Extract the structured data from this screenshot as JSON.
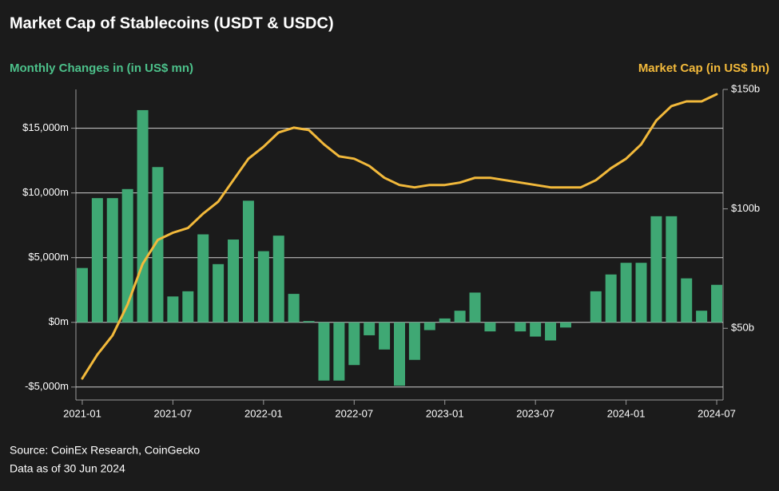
{
  "chart_data": {
    "type": "bar",
    "title": "Market Cap of Stablecoins (USDT & USDC)",
    "y_axis_label": "Monthly Changes in (in US$ mn)",
    "y2_axis_label": "Market Cap (in US$ bn)",
    "source": "Source: CoinEx Research, CoinGecko",
    "note": "Data as of 30 Jun 2024",
    "categories": [
      "2021-01",
      null,
      null,
      null,
      null,
      null,
      "2021-07",
      null,
      null,
      null,
      null,
      null,
      "2022-01",
      null,
      null,
      null,
      null,
      null,
      "2022-07",
      null,
      null,
      null,
      null,
      null,
      "2023-01",
      null,
      null,
      null,
      null,
      null,
      "2023-07",
      null,
      null,
      null,
      null,
      null,
      "2024-01",
      null,
      null,
      null,
      null,
      null,
      "2024-07"
    ],
    "series": [
      {
        "name": "Monthly Changes in (in US$ mn)",
        "type": "bar",
        "color": "#3fa874",
        "values": [
          4200,
          9600,
          9600,
          10300,
          16400,
          12000,
          2000,
          2400,
          6800,
          4500,
          6400,
          9400,
          5500,
          6700,
          2200,
          100,
          -4500,
          -4500,
          -3300,
          -1000,
          -2100,
          -4900,
          -2900,
          -600,
          300,
          900,
          2300,
          -700,
          0,
          -700,
          -1100,
          -1400,
          -400,
          0,
          2400,
          3700,
          4600,
          4600,
          8200,
          8200,
          3400,
          900,
          2900
        ]
      },
      {
        "name": "Market Cap (in US$ bn)",
        "type": "line",
        "axis": "y2",
        "color": "#f2b93b",
        "values": [
          29,
          39,
          47,
          60,
          77,
          87,
          90,
          92,
          98,
          103,
          112,
          121,
          126,
          132,
          134,
          133,
          127,
          122,
          121,
          118,
          113,
          110,
          109,
          110,
          110,
          111,
          113,
          113,
          112,
          111,
          110,
          109,
          109,
          109,
          112,
          117,
          121,
          127,
          137,
          143,
          145,
          145,
          148
        ]
      }
    ],
    "ylim": [
      -6000,
      18000
    ],
    "yticks": [
      {
        "value": -5000,
        "label": "-$5,000m"
      },
      {
        "value": 0,
        "label": "$0m"
      },
      {
        "value": 5000,
        "label": "$5,000m"
      },
      {
        "value": 10000,
        "label": "$10,000m"
      },
      {
        "value": 15000,
        "label": "$15,000m"
      }
    ],
    "y2lim": [
      20,
      150
    ],
    "y2ticks": [
      {
        "value": 50,
        "label": "$50b"
      },
      {
        "value": 100,
        "label": "$100b"
      },
      {
        "value": 150,
        "label": "$150b"
      }
    ],
    "grid": true
  }
}
